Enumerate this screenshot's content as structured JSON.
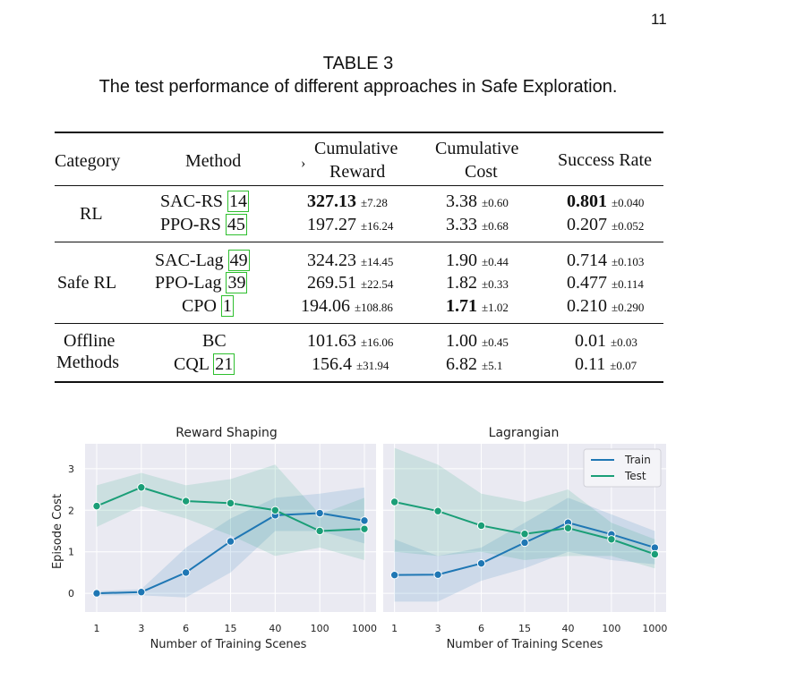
{
  "page_number": "11",
  "table": {
    "label": "TABLE 3",
    "title": "The test performance of different approaches in Safe Exploration.",
    "headers": {
      "category": "Category",
      "method": "Method",
      "arrow": "›",
      "reward_line1": "Cumulative",
      "reward_line2": "Reward",
      "cost_line1": "Cumulative",
      "cost_line2": "Cost",
      "success": "Success Rate"
    },
    "groups": [
      {
        "category_line1": "RL",
        "category_line2": "",
        "rows": [
          {
            "method": "SAC-RS",
            "ref": "14",
            "reward": "327.13",
            "reward_sd": "±7.28",
            "cost": "3.38",
            "cost_sd": "±0.60",
            "success": "0.801",
            "success_sd": "±0.040"
          },
          {
            "method": "PPO-RS",
            "ref": "45",
            "reward": "197.27",
            "reward_sd": "±16.24",
            "cost": "3.33",
            "cost_sd": "±0.68",
            "success": "0.207",
            "success_sd": "±0.052"
          }
        ]
      },
      {
        "category_line1": "Safe RL",
        "category_line2": "",
        "rows": [
          {
            "method": "SAC-Lag",
            "ref": "49",
            "reward": "324.23",
            "reward_sd": "±14.45",
            "cost": "1.90",
            "cost_sd": "±0.44",
            "success": "0.714",
            "success_sd": "±0.103"
          },
          {
            "method": "PPO-Lag",
            "ref": "39",
            "reward": "269.51",
            "reward_sd": "±22.54",
            "cost": "1.82",
            "cost_sd": "±0.33",
            "success": "0.477",
            "success_sd": "±0.114"
          },
          {
            "method": "CPO",
            "ref": "1",
            "reward": "194.06",
            "reward_sd": "±108.86",
            "cost": "1.71",
            "cost_sd": "±1.02",
            "success": "0.210",
            "success_sd": "±0.290"
          }
        ]
      },
      {
        "category_line1": "Offline",
        "category_line2": "Methods",
        "rows": [
          {
            "method": "BC",
            "ref": "",
            "reward": "101.63",
            "reward_sd": "±16.06",
            "cost": "1.00",
            "cost_sd": "±0.45",
            "success": "0.01",
            "success_sd": "±0.03"
          },
          {
            "method": "CQL",
            "ref": "21",
            "reward": "156.4",
            "reward_sd": "±31.94",
            "cost": "6.82",
            "cost_sd": "±5.1",
            "success": "0.11",
            "success_sd": "±0.07"
          }
        ]
      }
    ]
  },
  "chart_data": [
    {
      "type": "line",
      "title": "Reward Shaping",
      "xlabel": "Number of Training Scenes",
      "ylabel": "Episode Cost",
      "categories": [
        "1",
        "3",
        "6",
        "15",
        "40",
        "100",
        "1000"
      ],
      "yticks": [
        "0",
        "1",
        "2",
        "3"
      ],
      "ylim": [
        -0.45,
        3.6
      ],
      "grid": true,
      "series": [
        {
          "name": "Train",
          "color": "#1f77b4",
          "values": [
            0.0,
            0.03,
            0.5,
            1.25,
            1.88,
            1.93,
            1.75
          ],
          "lower": [
            -0.05,
            -0.05,
            -0.1,
            0.5,
            1.5,
            1.5,
            1.2
          ],
          "upper": [
            0.05,
            0.1,
            1.1,
            1.8,
            2.3,
            2.4,
            2.55
          ]
        },
        {
          "name": "Test",
          "color": "#1a9e77",
          "values": [
            2.1,
            2.55,
            2.22,
            2.17,
            2.0,
            1.5,
            1.55
          ],
          "lower": [
            1.6,
            2.1,
            1.8,
            1.4,
            0.9,
            1.1,
            0.8
          ],
          "upper": [
            2.6,
            2.9,
            2.6,
            2.75,
            3.1,
            1.9,
            2.3
          ]
        }
      ]
    },
    {
      "type": "line",
      "title": "Lagrangian",
      "xlabel": "Number of Training Scenes",
      "ylabel": "",
      "categories": [
        "1",
        "3",
        "6",
        "15",
        "40",
        "100",
        "1000"
      ],
      "ylim": [
        -0.45,
        3.6
      ],
      "grid": true,
      "legend": "top-right",
      "series": [
        {
          "name": "Train",
          "color": "#1f77b4",
          "values": [
            0.44,
            0.45,
            0.72,
            1.22,
            1.7,
            1.42,
            1.1
          ],
          "lower": [
            -0.2,
            -0.2,
            0.3,
            0.6,
            1.0,
            0.8,
            0.7
          ],
          "upper": [
            1.3,
            0.9,
            1.1,
            1.7,
            2.3,
            1.9,
            1.5
          ]
        },
        {
          "name": "Test",
          "color": "#1a9e77",
          "values": [
            2.2,
            1.98,
            1.63,
            1.43,
            1.57,
            1.3,
            0.94
          ],
          "lower": [
            1.0,
            0.9,
            1.0,
            0.8,
            0.9,
            0.9,
            0.6
          ],
          "upper": [
            3.5,
            3.1,
            2.4,
            2.2,
            2.5,
            1.7,
            1.3
          ]
        }
      ]
    }
  ]
}
